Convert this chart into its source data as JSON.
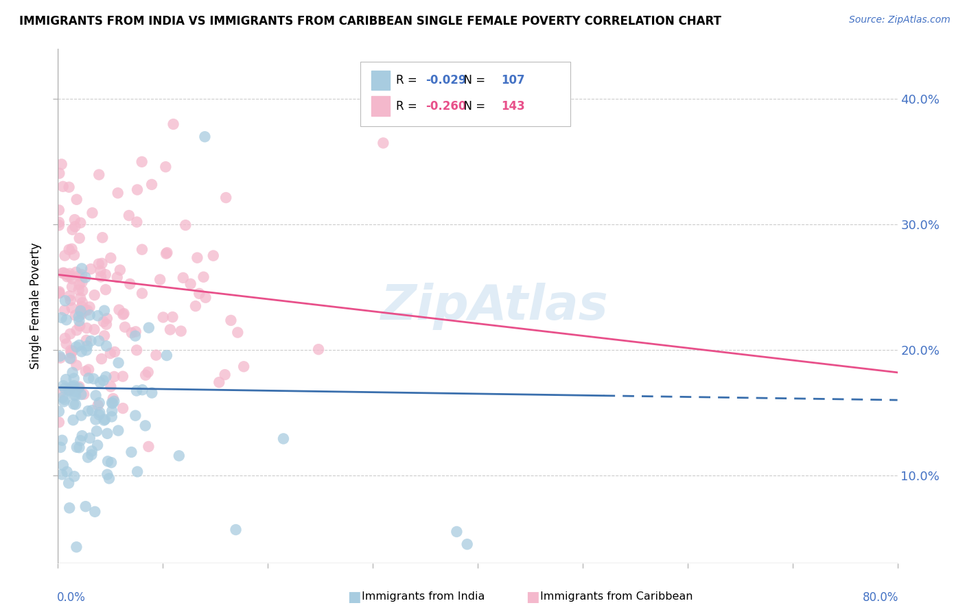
{
  "title": "IMMIGRANTS FROM INDIA VS IMMIGRANTS FROM CARIBBEAN SINGLE FEMALE POVERTY CORRELATION CHART",
  "source": "Source: ZipAtlas.com",
  "ylabel": "Single Female Poverty",
  "legend_india": "Immigrants from India",
  "legend_caribbean": "Immigrants from Caribbean",
  "R_india": -0.029,
  "N_india": 107,
  "R_caribbean": -0.26,
  "N_caribbean": 143,
  "color_india": "#a8cce0",
  "color_caribbean": "#f4b8cc",
  "line_color_india": "#3a6fad",
  "line_color_caribbean": "#e8508a",
  "xlim": [
    0.0,
    0.8
  ],
  "ylim": [
    0.03,
    0.44
  ],
  "yticks": [
    0.1,
    0.2,
    0.3,
    0.4
  ],
  "ytick_labels": [
    "10.0%",
    "20.0%",
    "30.0%",
    "40.0%"
  ],
  "watermark": "ZipAtlas",
  "background_color": "#ffffff",
  "india_line_start_y": 0.17,
  "india_line_end_y": 0.16,
  "caribbean_line_start_y": 0.26,
  "caribbean_line_end_y": 0.182
}
